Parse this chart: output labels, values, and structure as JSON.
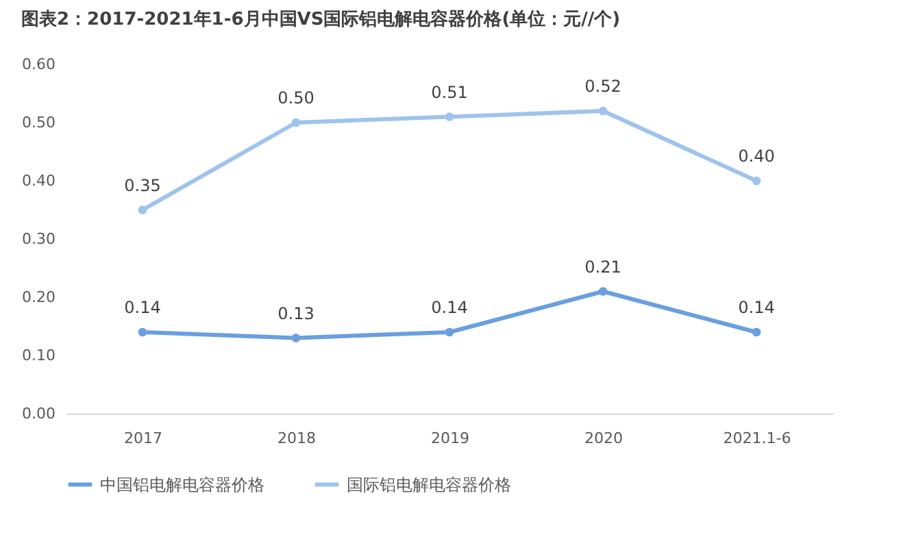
{
  "chart_data": {
    "type": "line",
    "title": "图表2：2017-2021年1-6月中国VS国际铝电解电容器价格(单位：元//个)",
    "categories": [
      "2017",
      "2018",
      "2019",
      "2020",
      "2021.1-6"
    ],
    "series": [
      {
        "name": "中国铝电解电容器价格",
        "color": "#6a9fe0",
        "values": [
          0.14,
          0.13,
          0.14,
          0.21,
          0.14
        ],
        "value_labels": [
          "0.14",
          "0.13",
          "0.14",
          "0.21",
          "0.14"
        ]
      },
      {
        "name": "国际铝电解电容器价格",
        "color": "#9fc3ec",
        "values": [
          0.35,
          0.5,
          0.51,
          0.52,
          0.4
        ],
        "value_labels": [
          "0.35",
          "0.50",
          "0.51",
          "0.52",
          "0.40"
        ]
      }
    ],
    "ylim": [
      0,
      0.6
    ],
    "yticks": [
      {
        "value": 0,
        "label": "0.00"
      },
      {
        "value": 0.1,
        "label": "0.10"
      },
      {
        "value": 0.2,
        "label": "0.20"
      },
      {
        "value": 0.3,
        "label": "0.30"
      },
      {
        "value": 0.4,
        "label": "0.40"
      },
      {
        "value": 0.5,
        "label": "0.50"
      },
      {
        "value": 0.6,
        "label": "0.60"
      }
    ],
    "grid": false,
    "legend": "bottom",
    "marker": "circle",
    "line_style": "solid"
  }
}
